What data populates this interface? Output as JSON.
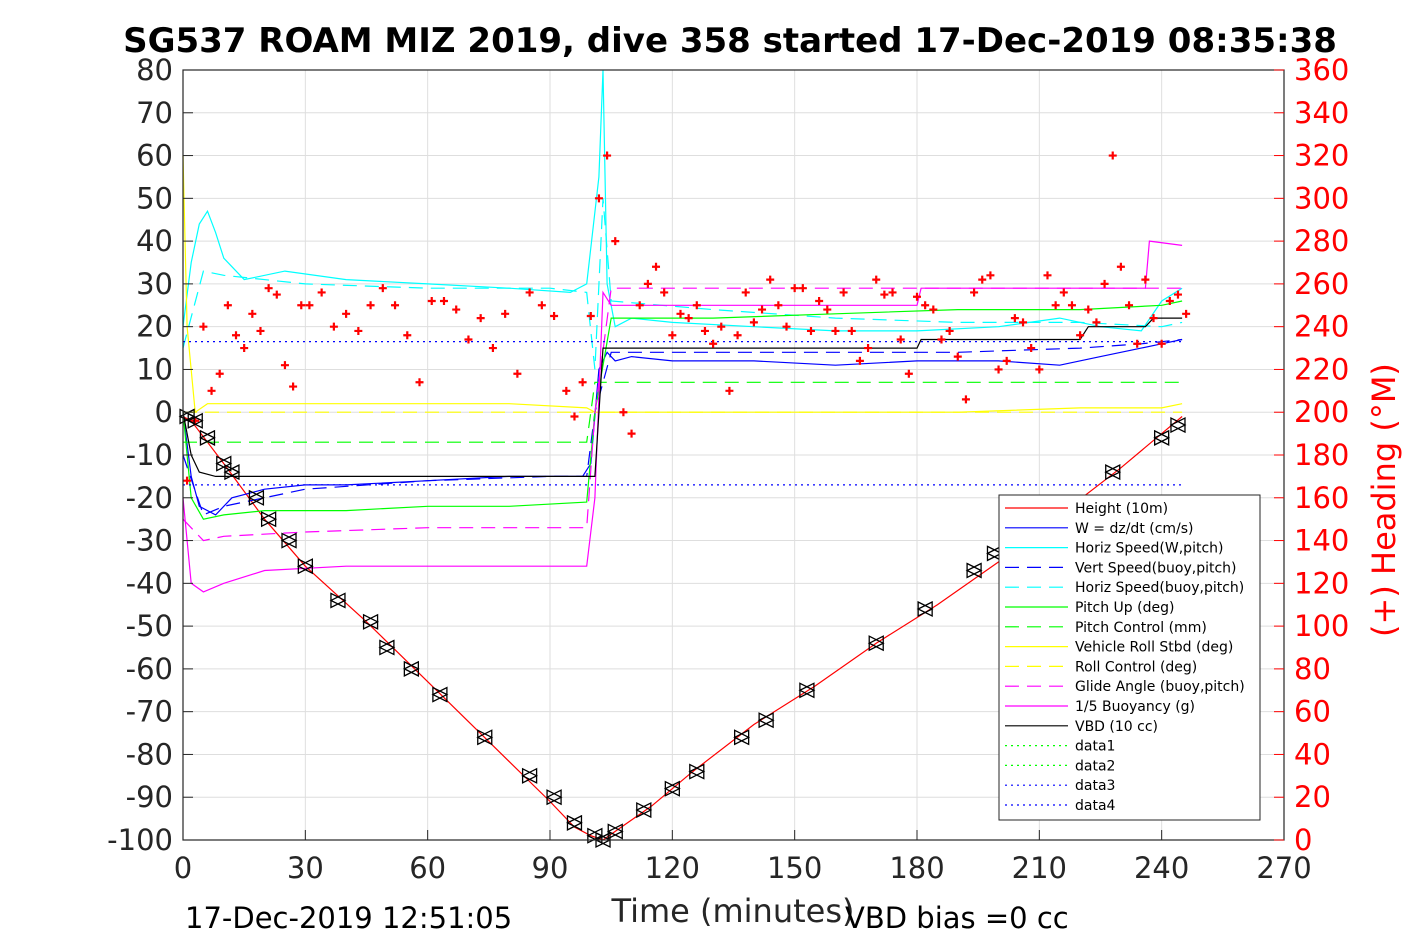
{
  "chart_data": {
    "type": "line",
    "title": "SG537 ROAM MIZ 2019, dive 358 started 17-Dec-2019 08:35:38",
    "xlabel": "Time (minutes)",
    "ylabel": "",
    "y2label": "(+) Heading (°M)",
    "xlim": [
      0,
      270
    ],
    "ylim": [
      -100,
      80
    ],
    "y2lim": [
      0,
      360
    ],
    "xticks": [
      "0",
      "30",
      "60",
      "90",
      "120",
      "150",
      "180",
      "210",
      "240",
      "270"
    ],
    "yticks": [
      "80",
      "70",
      "60",
      "50",
      "40",
      "30",
      "20",
      "10",
      "0",
      "-10",
      "-20",
      "-30",
      "-40",
      "-50",
      "-60",
      "-70",
      "-80",
      "-90",
      "-100"
    ],
    "y2ticks": [
      "360",
      "340",
      "320",
      "300",
      "280",
      "260",
      "240",
      "220",
      "200",
      "180",
      "160",
      "140",
      "120",
      "100",
      "80",
      "60",
      "40",
      "20",
      "0"
    ],
    "grid": true,
    "legend_position": "bottom-right",
    "footer_left": "17-Dec-2019 12:51:05",
    "footer_right": "VBD bias =0 cc",
    "series": [
      {
        "name": "Height (10m)",
        "color": "#ff0000",
        "style": "solid",
        "x": [
          0,
          2,
          10,
          20,
          30,
          45,
          60,
          75,
          90,
          96,
          100,
          103,
          106,
          115,
          125,
          140,
          155,
          170,
          185,
          200,
          215,
          230,
          240,
          245
        ],
        "y": [
          -1,
          -2,
          -12,
          -25,
          -36,
          -49,
          -63,
          -77,
          -91,
          -97,
          -99,
          -100,
          -98,
          -92,
          -84,
          -73,
          -64,
          -54,
          -45,
          -35,
          -24,
          -13,
          -5,
          -1
        ]
      },
      {
        "name": "W = dz/dt (cm/s)",
        "color": "#0000ff",
        "style": "solid",
        "x": [
          0,
          2,
          4,
          8,
          12,
          20,
          30,
          40,
          60,
          80,
          98,
          100,
          102,
          104,
          106,
          110,
          120,
          140,
          160,
          180,
          200,
          215,
          225,
          235,
          240,
          245
        ],
        "y": [
          0,
          -15,
          -22,
          -24,
          -20,
          -18,
          -17,
          -17,
          -16,
          -15,
          -15,
          -12,
          10,
          14,
          12,
          13,
          12,
          12,
          11,
          12,
          12,
          11,
          13,
          15,
          16,
          17
        ]
      },
      {
        "name": "Horiz Speed(W,pitch)",
        "color": "#00ffff",
        "style": "solid",
        "x": [
          0,
          2,
          4,
          6,
          8,
          10,
          15,
          25,
          40,
          60,
          80,
          95,
          99,
          102,
          103,
          104,
          106,
          110,
          120,
          140,
          160,
          180,
          200,
          215,
          225,
          235,
          240,
          245
        ],
        "y": [
          20,
          35,
          44,
          47,
          42,
          36,
          31,
          33,
          31,
          30,
          29,
          28,
          30,
          55,
          80,
          30,
          20,
          22,
          21,
          20,
          19,
          19,
          20,
          22,
          20,
          19,
          26,
          29
        ]
      },
      {
        "name": "Vert Speed(buoy,pitch)",
        "color": "#0000ff",
        "style": "dashed",
        "x": [
          0,
          5,
          10,
          30,
          60,
          90,
          99,
          101,
          105,
          130,
          160,
          190,
          220,
          235,
          245
        ],
        "y": [
          -10,
          -24,
          -22,
          -18,
          -16,
          -15,
          -15,
          0,
          14,
          14,
          14,
          14,
          15,
          16,
          17
        ]
      },
      {
        "name": "Horiz Speed(buoy,pitch)",
        "color": "#00ffff",
        "style": "dashed",
        "x": [
          0,
          5,
          10,
          30,
          60,
          90,
          99,
          101,
          103,
          105,
          130,
          160,
          190,
          220,
          240,
          245
        ],
        "y": [
          15,
          33,
          32,
          30,
          29,
          29,
          28,
          10,
          50,
          26,
          24,
          22,
          21,
          21,
          20,
          21
        ]
      },
      {
        "name": "Pitch Up (deg)",
        "color": "#00ff00",
        "style": "solid",
        "x": [
          0,
          2,
          5,
          10,
          20,
          40,
          60,
          80,
          99,
          101,
          105,
          130,
          160,
          190,
          220,
          240,
          245
        ],
        "y": [
          0,
          -20,
          -25,
          -24,
          -23,
          -23,
          -22,
          -22,
          -21,
          0,
          22,
          22,
          23,
          24,
          24,
          25,
          26
        ]
      },
      {
        "name": "Pitch Control (mm)",
        "color": "#00ff00",
        "style": "dashed",
        "x": [
          0,
          99,
          101,
          245
        ],
        "y": [
          -7,
          -7,
          7,
          7
        ]
      },
      {
        "name": "Vehicle Roll Stbd (deg)",
        "color": "#ffff00",
        "style": "solid",
        "x": [
          0,
          1,
          3,
          6,
          10,
          20,
          30,
          40,
          60,
          80,
          99,
          101,
          110,
          130,
          160,
          190,
          220,
          240,
          245
        ],
        "y": [
          60,
          20,
          0,
          2,
          2,
          2,
          2,
          2,
          2,
          2,
          1,
          0,
          0,
          0,
          0,
          0,
          1,
          1,
          2
        ]
      },
      {
        "name": "Roll Control (deg)",
        "color": "#ffff00",
        "style": "dashed",
        "x": [
          0,
          245
        ],
        "y": [
          0,
          0
        ]
      },
      {
        "name": "Glide Angle (buoy,pitch)",
        "color": "#ff00ff",
        "style": "dashed",
        "x": [
          0,
          5,
          10,
          30,
          60,
          90,
          99,
          101,
          105,
          130,
          160,
          190,
          220,
          240,
          245
        ],
        "y": [
          -25,
          -30,
          -29,
          -28,
          -27,
          -27,
          -27,
          0,
          29,
          29,
          29,
          29,
          29,
          29,
          29
        ]
      },
      {
        "name": "1/5 Buoyancy (g)",
        "color": "#ff00ff",
        "style": "solid",
        "x": [
          0,
          2,
          5,
          10,
          20,
          40,
          60,
          80,
          99,
          101,
          103,
          105,
          130,
          160,
          180,
          181,
          200,
          220,
          236,
          237,
          245
        ],
        "y": [
          -20,
          -40,
          -42,
          -40,
          -37,
          -36,
          -36,
          -36,
          -36,
          -20,
          28,
          25,
          25,
          25,
          25,
          29,
          29,
          29,
          29,
          40,
          39
        ]
      },
      {
        "name": "VBD (10 cc)",
        "color": "#000000",
        "style": "solid",
        "x": [
          0,
          2,
          4,
          8,
          15,
          99,
          101,
          103,
          180,
          181,
          220,
          222,
          236,
          238,
          245
        ],
        "y": [
          0,
          -10,
          -14,
          -15,
          -15,
          -15,
          -15,
          15,
          15,
          17,
          17,
          20,
          20,
          22,
          22
        ]
      },
      {
        "name": "data1",
        "color": "#00ff00",
        "style": "dotted",
        "x": [],
        "y": []
      },
      {
        "name": "data2",
        "color": "#00ff00",
        "style": "dotted",
        "x": [],
        "y": []
      },
      {
        "name": "data3",
        "color": "#0000ff",
        "style": "dotted",
        "x": [
          0,
          245
        ],
        "y": [
          -17,
          -17
        ]
      },
      {
        "name": "data4",
        "color": "#0000ff",
        "style": "dotted",
        "x": [
          0,
          245
        ],
        "y": [
          16.5,
          16.5
        ]
      }
    ],
    "heading_points": {
      "name": "Heading",
      "color": "#ff0000",
      "axis": "right",
      "x": [
        1,
        3,
        5,
        7,
        9,
        11,
        13,
        15,
        17,
        19,
        21,
        23,
        25,
        27,
        29,
        31,
        34,
        37,
        40,
        43,
        46,
        49,
        52,
        55,
        58,
        61,
        64,
        67,
        70,
        73,
        76,
        79,
        82,
        85,
        88,
        91,
        94,
        96,
        98,
        100,
        102,
        104,
        106,
        108,
        110,
        112,
        114,
        116,
        118,
        120,
        122,
        124,
        126,
        128,
        130,
        132,
        134,
        136,
        138,
        140,
        142,
        144,
        146,
        148,
        150,
        152,
        154,
        156,
        158,
        160,
        162,
        164,
        166,
        168,
        170,
        172,
        174,
        176,
        178,
        180,
        182,
        184,
        186,
        188,
        190,
        192,
        194,
        196,
        198,
        200,
        202,
        204,
        206,
        208,
        210,
        212,
        214,
        216,
        218,
        220,
        222,
        224,
        226,
        228,
        230,
        232,
        234,
        236,
        238,
        240,
        242,
        244,
        246
      ],
      "y": [
        168,
        196,
        240,
        210,
        218,
        250,
        236,
        230,
        246,
        238,
        258,
        255,
        222,
        212,
        250,
        250,
        256,
        240,
        246,
        238,
        250,
        258,
        250,
        236,
        214,
        252,
        252,
        248,
        234,
        244,
        230,
        246,
        218,
        256,
        250,
        245,
        210,
        198,
        214,
        245,
        300,
        320,
        280,
        200,
        190,
        250,
        260,
        268,
        256,
        236,
        246,
        244,
        250,
        238,
        232,
        240,
        210,
        236,
        256,
        242,
        248,
        262,
        250,
        240,
        258,
        258,
        238,
        252,
        248,
        238,
        256,
        238,
        224,
        230,
        262,
        255,
        256,
        234,
        218,
        254,
        250,
        248,
        234,
        238,
        226,
        206,
        256,
        262,
        264,
        220,
        224,
        244,
        242,
        230,
        220,
        264,
        250,
        256,
        250,
        236,
        248,
        242,
        260,
        320,
        268,
        250,
        232,
        262,
        244,
        232,
        252,
        255,
        246
      ]
    },
    "markers": {
      "name": "Height markers",
      "color": "#000000",
      "x": [
        1,
        3,
        6,
        10,
        12,
        18,
        21,
        26,
        30,
        38,
        46,
        50,
        56,
        63,
        74,
        85,
        91,
        96,
        101,
        103,
        106,
        113,
        120,
        126,
        137,
        143,
        153,
        170,
        182,
        194,
        199,
        228,
        240,
        244
      ],
      "y": [
        -1,
        -2,
        -6,
        -12,
        -14,
        -20,
        -25,
        -30,
        -36,
        -44,
        -49,
        -55,
        -60,
        -66,
        -76,
        -85,
        -90,
        -96,
        -99,
        -100,
        -98,
        -93,
        -88,
        -84,
        -76,
        -72,
        -65,
        -54,
        -46,
        -37,
        -33,
        -14,
        -6,
        -3
      ]
    }
  }
}
